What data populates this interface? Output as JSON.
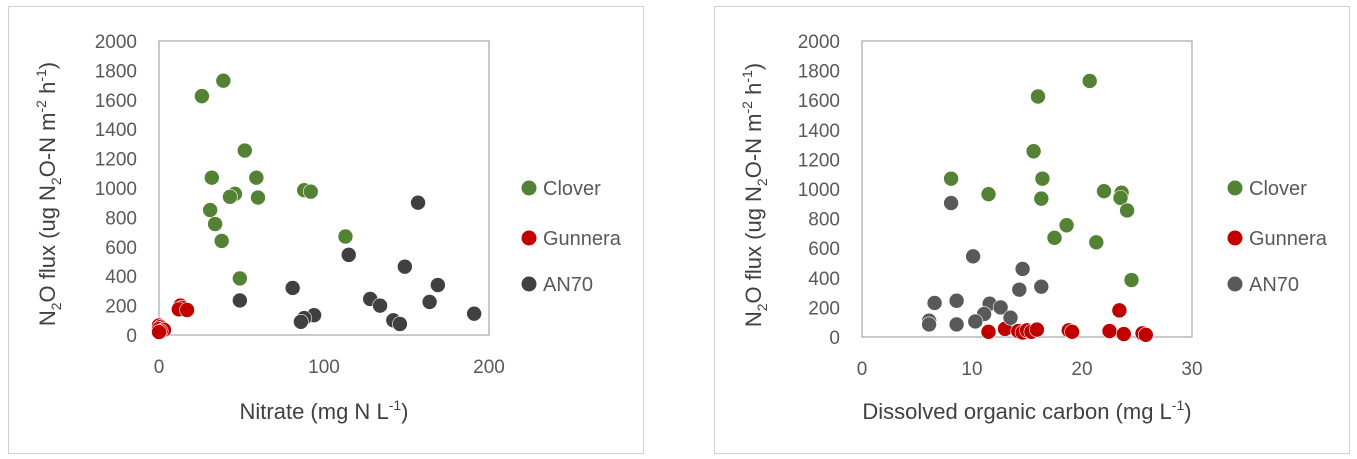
{
  "chart_data": [
    {
      "type": "scatter",
      "title": "",
      "xlabel": "Nitrate (mg N L-1)",
      "ylabel": "N2O flux (ug N2O-N m-2 h-1)",
      "xlim": [
        0,
        200
      ],
      "ylim": [
        0,
        2000
      ],
      "xticks": [
        "0",
        "100",
        "200"
      ],
      "yticks": [
        "0",
        "200",
        "400",
        "600",
        "800",
        "1000",
        "1200",
        "1400",
        "1600",
        "1800",
        "2000"
      ],
      "grid": false,
      "legend_position": "right",
      "series": [
        {
          "name": "Clover",
          "color": "#548235",
          "points": [
            [
              26,
              1625
            ],
            [
              39,
              1730
            ],
            [
              52,
              1255
            ],
            [
              32,
              1070
            ],
            [
              59,
              1070
            ],
            [
              46,
              960
            ],
            [
              43,
              940
            ],
            [
              60,
              935
            ],
            [
              88,
              985
            ],
            [
              92,
              975
            ],
            [
              31,
              850
            ],
            [
              34,
              755
            ],
            [
              38,
              640
            ],
            [
              49,
              385
            ],
            [
              113,
              670
            ]
          ]
        },
        {
          "name": "Gunnera",
          "color": "#C00000",
          "points": [
            [
              0,
              65
            ],
            [
              1,
              55
            ],
            [
              2,
              45
            ],
            [
              0,
              40
            ],
            [
              3,
              35
            ],
            [
              1,
              25
            ],
            [
              0,
              20
            ],
            [
              13,
              200
            ],
            [
              14,
              185
            ],
            [
              12,
              175
            ],
            [
              17,
              170
            ]
          ]
        },
        {
          "name": "AN70",
          "color": "#404040",
          "points": [
            [
              157,
              900
            ],
            [
              115,
              545
            ],
            [
              149,
              465
            ],
            [
              169,
              340
            ],
            [
              81,
              320
            ],
            [
              128,
              245
            ],
            [
              164,
              225
            ],
            [
              49,
              235
            ],
            [
              134,
              200
            ],
            [
              191,
              145
            ],
            [
              94,
              135
            ],
            [
              88,
              115
            ],
            [
              86,
              90
            ],
            [
              142,
              100
            ],
            [
              146,
              75
            ]
          ]
        }
      ]
    },
    {
      "type": "scatter",
      "title": "",
      "xlabel": "Dissolved organic carbon (mg L-1)",
      "ylabel": "N2O flux (ug N2O-N m-2 h-1)",
      "xlim": [
        0,
        30
      ],
      "ylim": [
        0,
        2000
      ],
      "xticks": [
        "0",
        "10",
        "20",
        "30"
      ],
      "yticks": [
        "0",
        "200",
        "400",
        "600",
        "800",
        "1000",
        "1200",
        "1400",
        "1600",
        "1800",
        "2000"
      ],
      "grid": false,
      "legend_position": "right",
      "series": [
        {
          "name": "Clover",
          "color": "#548235",
          "points": [
            [
              20.7,
              1730
            ],
            [
              16.0,
              1625
            ],
            [
              15.6,
              1255
            ],
            [
              8.1,
              1070
            ],
            [
              16.4,
              1070
            ],
            [
              11.5,
              965
            ],
            [
              22.0,
              985
            ],
            [
              23.6,
              975
            ],
            [
              23.5,
              940
            ],
            [
              16.3,
              935
            ],
            [
              24.1,
              855
            ],
            [
              18.6,
              755
            ],
            [
              17.5,
              670
            ],
            [
              21.3,
              640
            ],
            [
              24.5,
              385
            ]
          ]
        },
        {
          "name": "Gunnera",
          "color": "#C00000",
          "points": [
            [
              23.4,
              180
            ],
            [
              11.5,
              35
            ],
            [
              13.0,
              55
            ],
            [
              14.2,
              40
            ],
            [
              14.6,
              30
            ],
            [
              15.0,
              45
            ],
            [
              15.4,
              35
            ],
            [
              15.9,
              50
            ],
            [
              18.8,
              45
            ],
            [
              19.1,
              35
            ],
            [
              22.5,
              40
            ],
            [
              23.8,
              20
            ],
            [
              25.5,
              25
            ],
            [
              25.8,
              15
            ]
          ]
        },
        {
          "name": "AN70",
          "color": "#595959",
          "points": [
            [
              8.1,
              905
            ],
            [
              10.1,
              545
            ],
            [
              14.6,
              460
            ],
            [
              14.3,
              320
            ],
            [
              16.3,
              340
            ],
            [
              6.6,
              230
            ],
            [
              8.6,
              245
            ],
            [
              11.6,
              225
            ],
            [
              12.6,
              200
            ],
            [
              11.1,
              155
            ],
            [
              13.5,
              130
            ],
            [
              6.1,
              110
            ],
            [
              6.1,
              85
            ],
            [
              10.3,
              105
            ],
            [
              8.6,
              85
            ]
          ]
        }
      ]
    }
  ]
}
